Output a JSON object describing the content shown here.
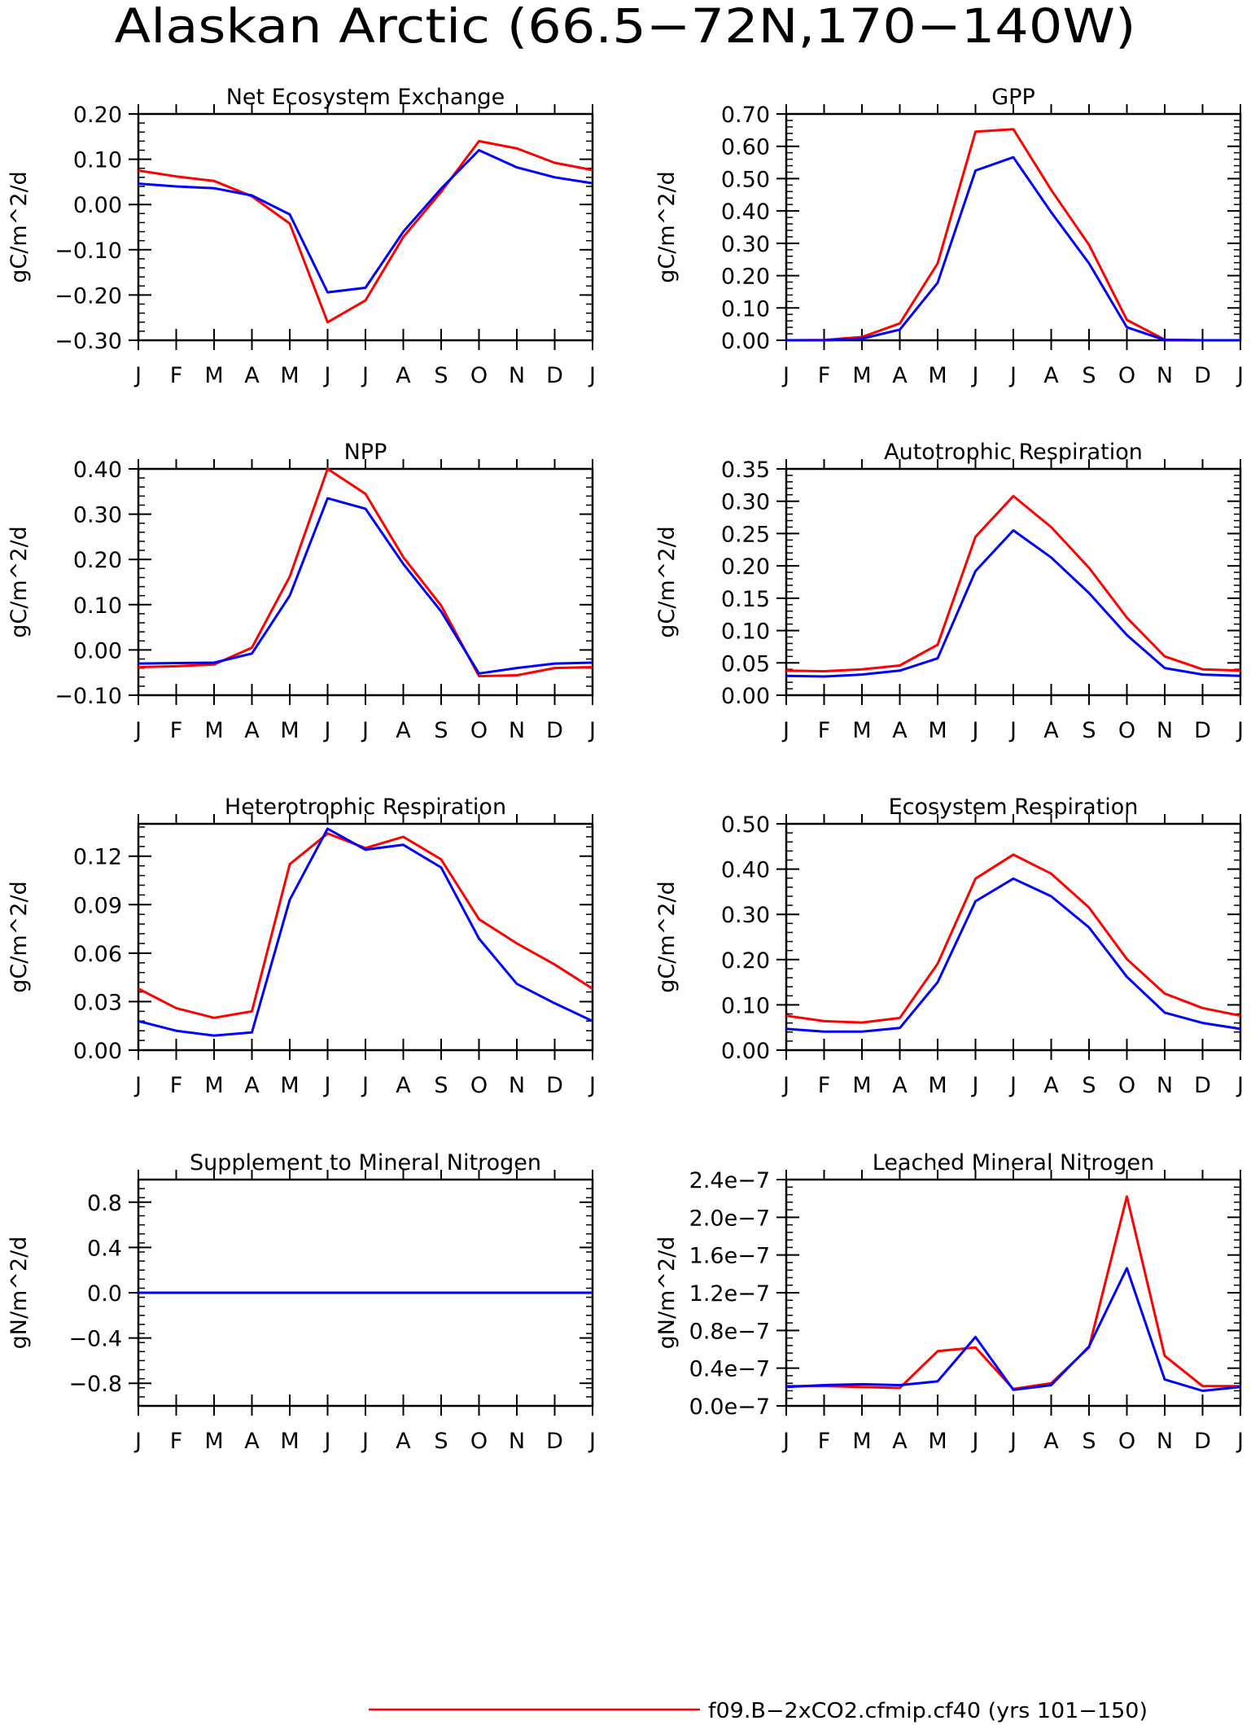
{
  "figure_title": "Alaskan Arctic (66.5−72N,170−140W)",
  "legend": {
    "entries": [
      {
        "label": "f09.B−2xCO2.cfmip.cf40 (yrs 101−150)",
        "color": "#ff0000"
      }
    ]
  },
  "colors": {
    "series_red": "#ff0000",
    "series_blue": "#0000ff"
  },
  "chart_data": [
    {
      "type": "line",
      "title": "Net Ecosystem Exchange",
      "ylabel": "gC/m^2/d",
      "categories": [
        "J",
        "F",
        "M",
        "A",
        "M",
        "J",
        "J",
        "A",
        "S",
        "O",
        "N",
        "D",
        "J"
      ],
      "ylim": [
        -0.3,
        0.2
      ],
      "yticks": [
        -0.3,
        -0.2,
        -0.1,
        0.0,
        0.1,
        0.2
      ],
      "ytick_labels": [
        "−0.30",
        "−0.20",
        "−0.10",
        "0.00",
        "0.10",
        "0.20"
      ],
      "series": [
        {
          "color": "#ff0000",
          "values": [
            0.075,
            0.062,
            0.052,
            0.018,
            -0.042,
            -0.26,
            -0.212,
            -0.072,
            0.028,
            0.14,
            0.124,
            0.092,
            0.076
          ]
        },
        {
          "color": "#0000ff",
          "values": [
            0.046,
            0.04,
            0.036,
            0.02,
            -0.022,
            -0.194,
            -0.184,
            -0.06,
            0.035,
            0.12,
            0.082,
            0.06,
            0.047
          ]
        }
      ]
    },
    {
      "type": "line",
      "title": "GPP",
      "ylabel": "gC/m^2/d",
      "categories": [
        "J",
        "F",
        "M",
        "A",
        "M",
        "J",
        "J",
        "A",
        "S",
        "O",
        "N",
        "D",
        "J"
      ],
      "ylim": [
        0.0,
        0.7
      ],
      "yticks": [
        0.0,
        0.1,
        0.2,
        0.3,
        0.4,
        0.5,
        0.6,
        0.7
      ],
      "ytick_labels": [
        "0.00",
        "0.10",
        "0.20",
        "0.30",
        "0.40",
        "0.50",
        "0.60",
        "0.70"
      ],
      "series": [
        {
          "color": "#ff0000",
          "values": [
            0.0,
            0.001,
            0.01,
            0.052,
            0.238,
            0.645,
            0.653,
            0.465,
            0.295,
            0.063,
            0.002,
            0.0,
            0.0
          ]
        },
        {
          "color": "#0000ff",
          "values": [
            0.0,
            0.0,
            0.005,
            0.033,
            0.178,
            0.525,
            0.566,
            0.396,
            0.238,
            0.04,
            0.001,
            0.0,
            0.0
          ]
        }
      ]
    },
    {
      "type": "line",
      "title": "NPP",
      "ylabel": "gC/m^2/d",
      "categories": [
        "J",
        "F",
        "M",
        "A",
        "M",
        "J",
        "J",
        "A",
        "S",
        "O",
        "N",
        "D",
        "J"
      ],
      "ylim": [
        -0.1,
        0.4
      ],
      "yticks": [
        -0.1,
        0.0,
        0.1,
        0.2,
        0.3,
        0.4
      ],
      "ytick_labels": [
        "−0.10",
        "0.00",
        "0.10",
        "0.20",
        "0.30",
        "0.40"
      ],
      "series": [
        {
          "color": "#ff0000",
          "values": [
            -0.038,
            -0.036,
            -0.032,
            0.005,
            0.162,
            0.4,
            0.345,
            0.205,
            0.098,
            -0.058,
            -0.056,
            -0.04,
            -0.038
          ]
        },
        {
          "color": "#0000ff",
          "values": [
            -0.03,
            -0.029,
            -0.028,
            -0.008,
            0.12,
            0.335,
            0.312,
            0.19,
            0.085,
            -0.052,
            -0.04,
            -0.03,
            -0.028
          ]
        }
      ]
    },
    {
      "type": "line",
      "title": "Autotrophic Respiration",
      "ylabel": "gC/m^2/d",
      "categories": [
        "J",
        "F",
        "M",
        "A",
        "M",
        "J",
        "J",
        "A",
        "S",
        "O",
        "N",
        "D",
        "J"
      ],
      "ylim": [
        0.0,
        0.35
      ],
      "yticks": [
        0.0,
        0.05,
        0.1,
        0.15,
        0.2,
        0.25,
        0.3,
        0.35
      ],
      "ytick_labels": [
        "0.00",
        "0.05",
        "0.10",
        "0.15",
        "0.20",
        "0.25",
        "0.30",
        "0.35"
      ],
      "series": [
        {
          "color": "#ff0000",
          "values": [
            0.038,
            0.037,
            0.04,
            0.046,
            0.078,
            0.245,
            0.308,
            0.26,
            0.197,
            0.12,
            0.06,
            0.04,
            0.038
          ]
        },
        {
          "color": "#0000ff",
          "values": [
            0.03,
            0.029,
            0.032,
            0.038,
            0.057,
            0.192,
            0.255,
            0.213,
            0.158,
            0.093,
            0.042,
            0.032,
            0.03
          ]
        }
      ]
    },
    {
      "type": "line",
      "title": "Heterotrophic Respiration",
      "ylabel": "gC/m^2/d",
      "categories": [
        "J",
        "F",
        "M",
        "A",
        "M",
        "J",
        "J",
        "A",
        "S",
        "O",
        "N",
        "D",
        "J"
      ],
      "ylim": [
        0.0,
        0.14
      ],
      "yticks": [
        0.0,
        0.03,
        0.06,
        0.09,
        0.12
      ],
      "ytick_labels": [
        "0.00",
        "0.03",
        "0.06",
        "0.09",
        "0.12"
      ],
      "series": [
        {
          "color": "#ff0000",
          "values": [
            0.038,
            0.026,
            0.02,
            0.024,
            0.115,
            0.134,
            0.125,
            0.132,
            0.118,
            0.081,
            0.066,
            0.053,
            0.038
          ]
        },
        {
          "color": "#0000ff",
          "values": [
            0.018,
            0.012,
            0.009,
            0.011,
            0.093,
            0.137,
            0.124,
            0.127,
            0.113,
            0.069,
            0.041,
            0.029,
            0.018
          ]
        }
      ]
    },
    {
      "type": "line",
      "title": "Ecosystem Respiration",
      "ylabel": "gC/m^2/d",
      "categories": [
        "J",
        "F",
        "M",
        "A",
        "M",
        "J",
        "J",
        "A",
        "S",
        "O",
        "N",
        "D",
        "J"
      ],
      "ylim": [
        0.0,
        0.5
      ],
      "yticks": [
        0.0,
        0.1,
        0.2,
        0.3,
        0.4,
        0.5
      ],
      "ytick_labels": [
        "0.00",
        "0.10",
        "0.20",
        "0.30",
        "0.40",
        "0.50"
      ],
      "series": [
        {
          "color": "#ff0000",
          "values": [
            0.076,
            0.064,
            0.061,
            0.071,
            0.191,
            0.379,
            0.432,
            0.39,
            0.315,
            0.201,
            0.125,
            0.093,
            0.076
          ]
        },
        {
          "color": "#0000ff",
          "values": [
            0.047,
            0.041,
            0.041,
            0.049,
            0.15,
            0.329,
            0.379,
            0.34,
            0.271,
            0.162,
            0.083,
            0.06,
            0.047
          ]
        }
      ]
    },
    {
      "type": "line",
      "title": "Supplement to Mineral Nitrogen",
      "ylabel": "gN/m^2/d",
      "categories": [
        "J",
        "F",
        "M",
        "A",
        "M",
        "J",
        "J",
        "A",
        "S",
        "O",
        "N",
        "D",
        "J"
      ],
      "ylim": [
        -1.0,
        1.0
      ],
      "yticks": [
        -0.8,
        -0.4,
        0.0,
        0.4,
        0.8
      ],
      "ytick_labels": [
        "−0.8",
        "−0.4",
        "0.0",
        "0.4",
        "0.8"
      ],
      "series": [
        {
          "color": "#ff0000",
          "values": [
            0,
            0,
            0,
            0,
            0,
            0,
            0,
            0,
            0,
            0,
            0,
            0,
            0
          ]
        },
        {
          "color": "#0000ff",
          "values": [
            0,
            0,
            0,
            0,
            0,
            0,
            0,
            0,
            0,
            0,
            0,
            0,
            0
          ]
        }
      ]
    },
    {
      "type": "line",
      "title": "Leached Mineral Nitrogen",
      "ylabel": "gN/m^2/d",
      "categories": [
        "J",
        "F",
        "M",
        "A",
        "M",
        "J",
        "J",
        "A",
        "S",
        "O",
        "N",
        "D",
        "J"
      ],
      "ylim": [
        0.0,
        2.4e-07
      ],
      "yticks": [
        0.0,
        4e-08,
        8e-08,
        1.2e-07,
        1.6e-07,
        2e-07,
        2.4e-07
      ],
      "ytick_labels": [
        "0.0e−7",
        "0.4e−7",
        "0.8e−7",
        "1.2e−7",
        "1.6e−7",
        "2.0e−7",
        "2.4e−7"
      ],
      "series": [
        {
          "color": "#ff0000",
          "values": [
            2.1e-08,
            2.1e-08,
            2e-08,
            1.9e-08,
            5.8e-08,
            6.2e-08,
            1.8e-08,
            2.4e-08,
            6.2e-08,
            2.22e-07,
            5.3e-08,
            2.1e-08,
            2.1e-08
          ]
        },
        {
          "color": "#0000ff",
          "values": [
            2e-08,
            2.2e-08,
            2.3e-08,
            2.2e-08,
            2.6e-08,
            7.3e-08,
            1.7e-08,
            2.2e-08,
            6.3e-08,
            1.46e-07,
            2.8e-08,
            1.6e-08,
            2e-08
          ]
        }
      ]
    }
  ]
}
